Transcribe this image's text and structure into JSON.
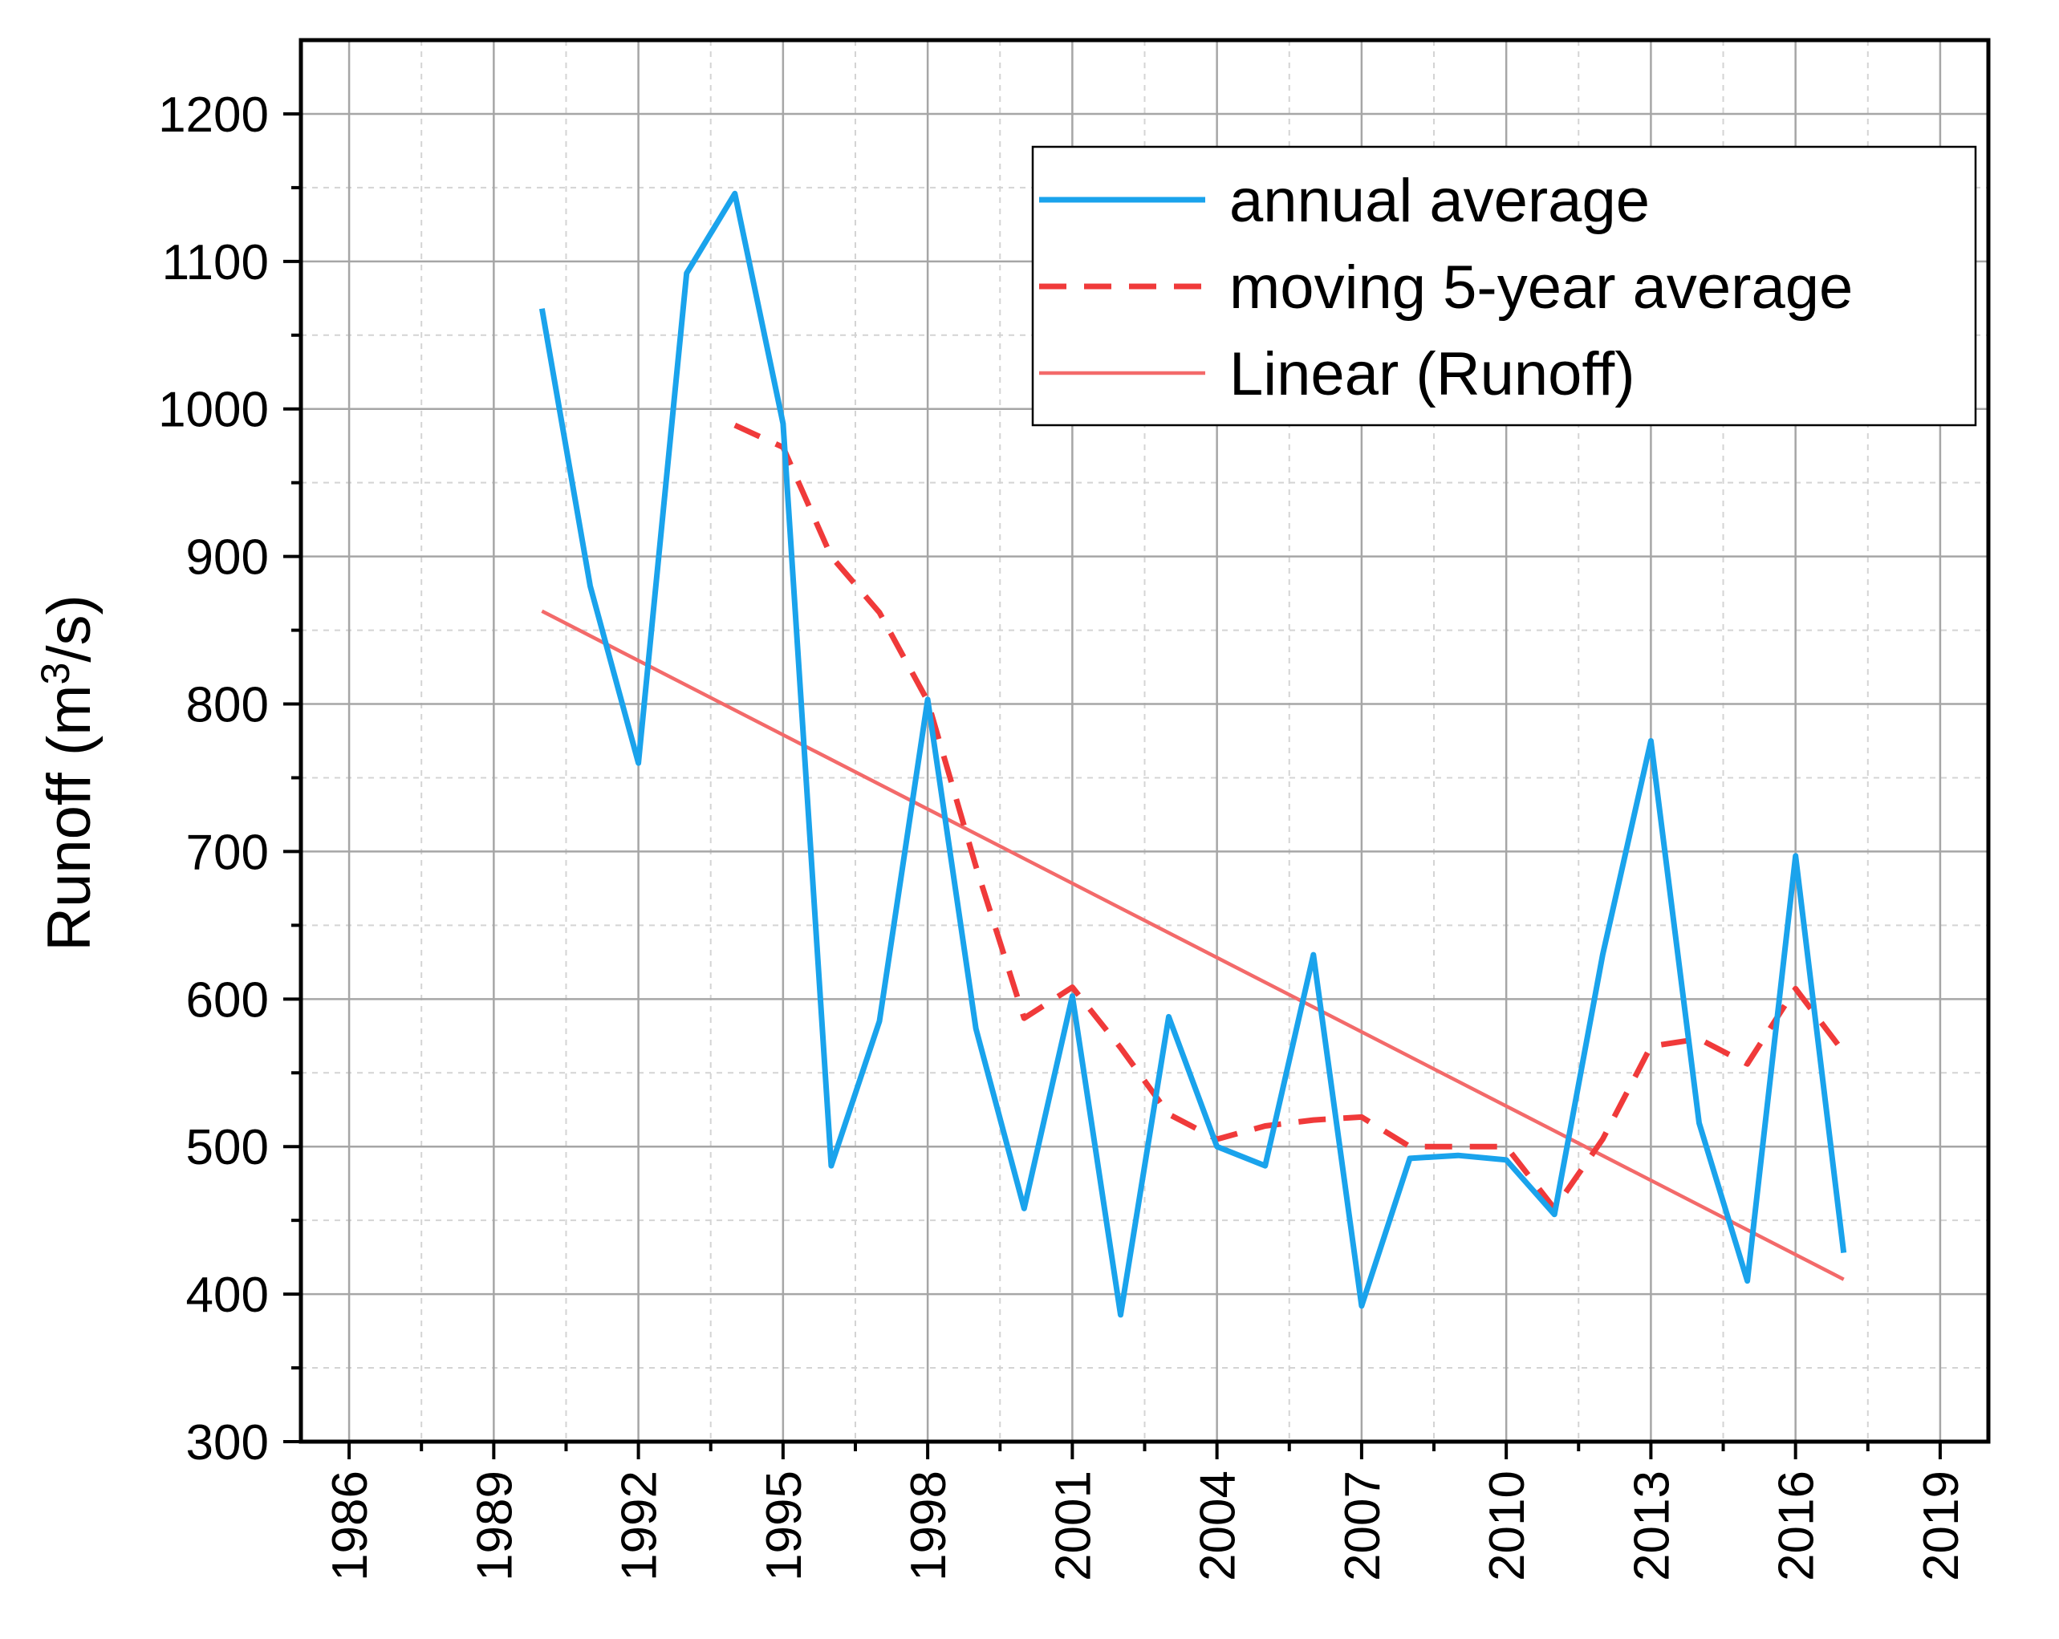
{
  "chart_data": {
    "type": "line",
    "title": "",
    "xlabel": "",
    "ylabel": "Runoff (m",
    "ylabel_superscript": "3",
    "ylabel_suffix": "/s)",
    "xlim": [
      1985,
      2020
    ],
    "ylim": [
      300,
      1250
    ],
    "xticks": [
      "1986",
      "1989",
      "1992",
      "1995",
      "1998",
      "2001",
      "2004",
      "2007",
      "2010",
      "2013",
      "2016",
      "2019"
    ],
    "yticks": [
      "300",
      "400",
      "500",
      "600",
      "700",
      "800",
      "900",
      "1000",
      "1100",
      "1200"
    ],
    "grid": true,
    "legend_position": "top-right",
    "series": [
      {
        "name": "annual average",
        "style": "solid",
        "color": "#1aa3ec",
        "x": [
          1990,
          1991,
          1992,
          1993,
          1994,
          1995,
          1996,
          1997,
          1998,
          1999,
          2000,
          2001,
          2002,
          2003,
          2004,
          2005,
          2006,
          2007,
          2008,
          2009,
          2010,
          2011,
          2012,
          2013,
          2014,
          2015,
          2016,
          2017
        ],
        "values": [
          1068,
          880,
          760,
          1092,
          1146,
          990,
          487,
          585,
          803,
          580,
          458,
          602,
          386,
          588,
          500,
          487,
          630,
          392,
          492,
          494,
          491,
          454,
          630,
          775,
          516,
          409,
          697,
          428
        ]
      },
      {
        "name": "moving 5-year average",
        "style": "dashed",
        "color": "#f03a3a",
        "x": [
          1994,
          1995,
          1996,
          1997,
          1998,
          1999,
          2000,
          2001,
          2002,
          2003,
          2004,
          2005,
          2006,
          2007,
          2008,
          2009,
          2010,
          2011,
          2012,
          2013,
          2014,
          2015,
          2016,
          2017
        ],
        "values": [
          989,
          974,
          900,
          862,
          802,
          690,
          587,
          608,
          567,
          522,
          505,
          514,
          518,
          520,
          500,
          500,
          500,
          458,
          505,
          568,
          573,
          556,
          607,
          564
        ]
      },
      {
        "name": "Linear (Runoff)",
        "style": "solid",
        "color": "#f36a6a",
        "x": [
          1990,
          2017
        ],
        "values": [
          863,
          410
        ]
      }
    ]
  }
}
